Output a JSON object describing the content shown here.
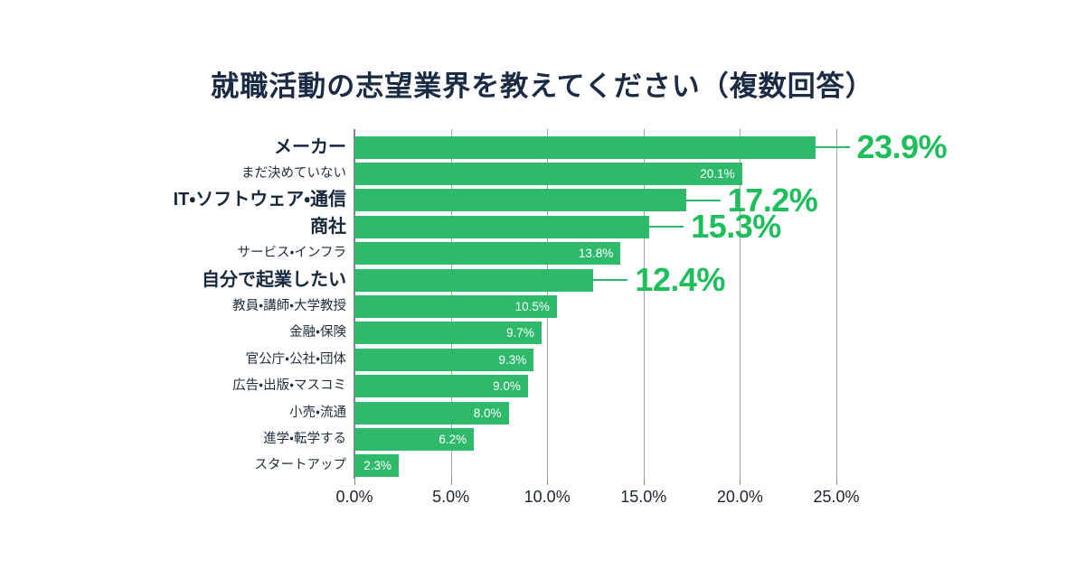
{
  "title": "就職活動の志望業界を教えてください（複数回答）",
  "colors": {
    "bar": "#2FBA6B",
    "highlight_text": "#1EBE5C",
    "title": "#1B2B44",
    "category_label": "#1E2C3C",
    "gridline": "#9AA3B8",
    "axis_line": "#7E8694",
    "bar_value_text": "#FFFFFF"
  },
  "chart_data": {
    "type": "bar",
    "orientation": "horizontal",
    "title": "就職活動の志望業界を教えてください（複数回答）",
    "categories": [
      "メーカー",
      "まだ決めていない",
      "IT・ソフトウェア・通信",
      "商社",
      "サービス・インフラ",
      "自分で起業したい",
      "教員・講師・大学教授",
      "金融・保険",
      "官公庁・公社・団体",
      "広告・出版・マスコミ",
      "小売・流通",
      "進学・転学する",
      "スタートアップ"
    ],
    "values": [
      23.9,
      20.1,
      17.2,
      15.3,
      13.8,
      12.4,
      10.5,
      9.7,
      9.3,
      9.0,
      8.0,
      6.2,
      2.3
    ],
    "value_labels": [
      "23.9%",
      "20.1%",
      "17.2%",
      "15.3%",
      "13.8%",
      "12.4%",
      "10.5%",
      "9.7%",
      "9.3%",
      "9.0%",
      "8.0%",
      "6.2%",
      "2.3%"
    ],
    "highlighted": [
      true,
      false,
      true,
      true,
      false,
      true,
      false,
      false,
      false,
      false,
      false,
      false,
      false
    ],
    "xlabel": "",
    "ylabel": "",
    "xlim": [
      0,
      25
    ],
    "x_ticks": [
      "0.0%",
      "5.0%",
      "10.0%",
      "15.0%",
      "20.0%",
      "25.0%"
    ],
    "x_tick_values": [
      0,
      5,
      10,
      15,
      20,
      25
    ],
    "grid": true,
    "legend": false,
    "value_label_position": {
      "highlighted": "outside-callout",
      "normal": "inside-right"
    }
  }
}
